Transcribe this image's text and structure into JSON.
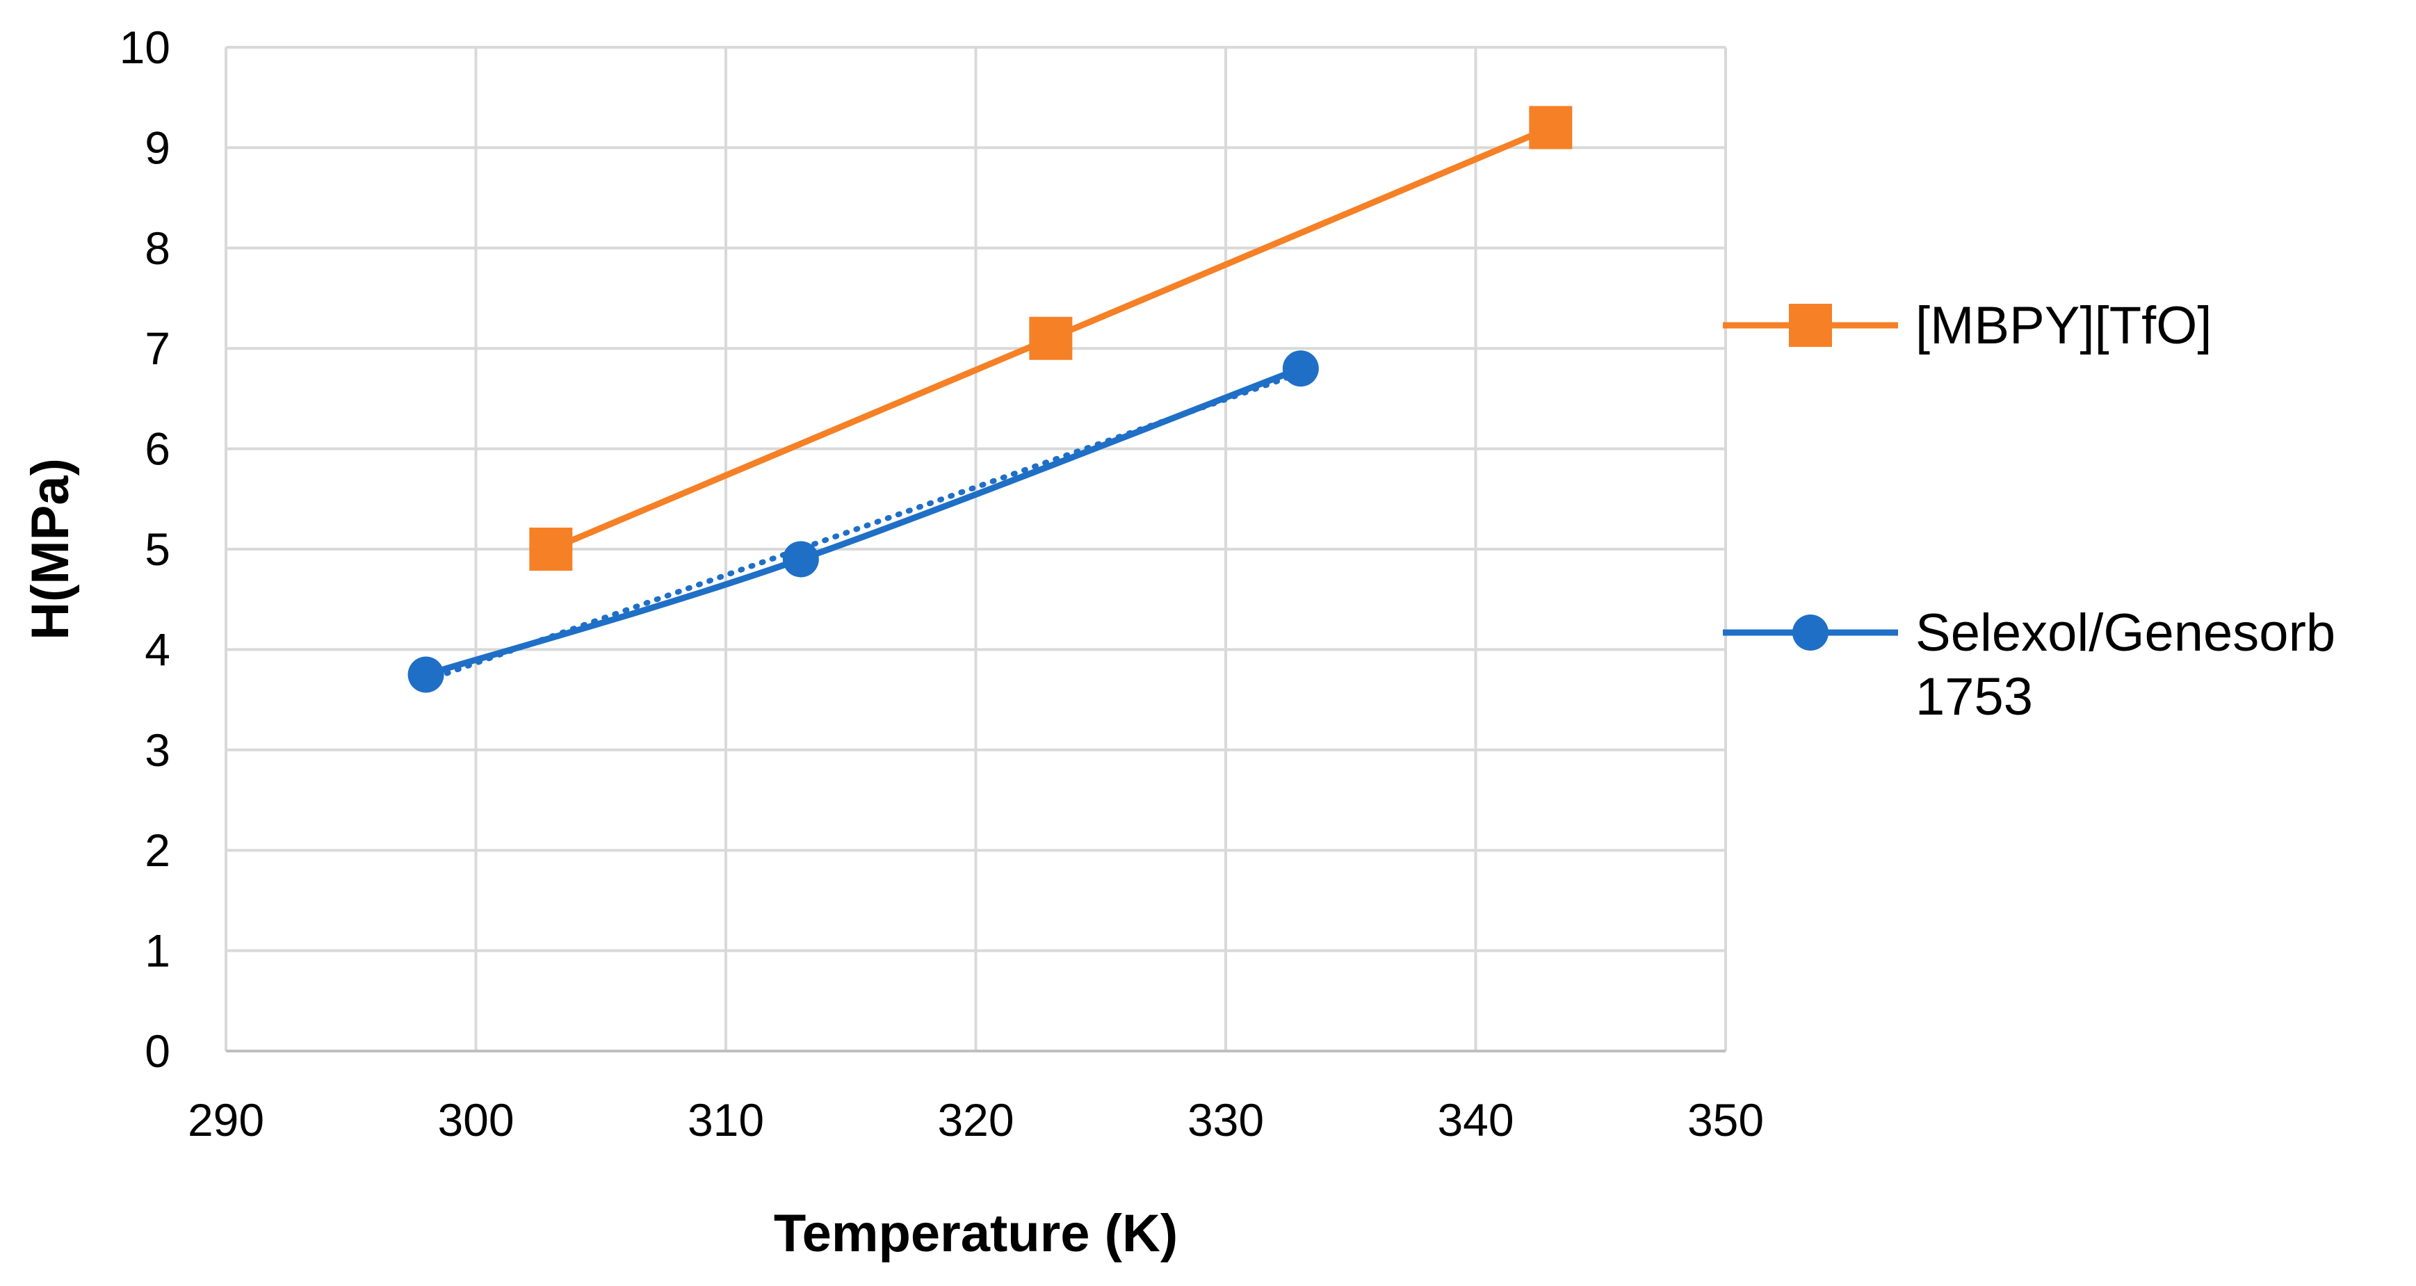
{
  "chart_data": {
    "type": "line",
    "title": "",
    "xlabel": "Temperature (K)",
    "ylabel": "H(MPa)",
    "xlim": [
      290,
      350
    ],
    "ylim": [
      0,
      10
    ],
    "xticks": [
      290,
      300,
      310,
      320,
      330,
      340,
      350
    ],
    "yticks": [
      0,
      1,
      2,
      3,
      4,
      5,
      6,
      7,
      8,
      9,
      10
    ],
    "grid": true,
    "legend_position": "right",
    "series": [
      {
        "name": "[MBPY][TfO]",
        "color": "#f58026",
        "marker": "square",
        "x": [
          303,
          323,
          343
        ],
        "y": [
          5.0,
          7.1,
          9.2
        ]
      },
      {
        "name": "Selexol/Genesorb 1753",
        "color": "#1f6fc6",
        "marker": "circle",
        "x": [
          298,
          313,
          333
        ],
        "y": [
          3.75,
          4.9,
          6.8
        ],
        "trendline": "dotted"
      }
    ],
    "legend": [
      {
        "lines": [
          "[MBPY][TfO]"
        ]
      },
      {
        "lines": [
          "Selexol/Genesorb",
          "1753"
        ]
      }
    ]
  }
}
